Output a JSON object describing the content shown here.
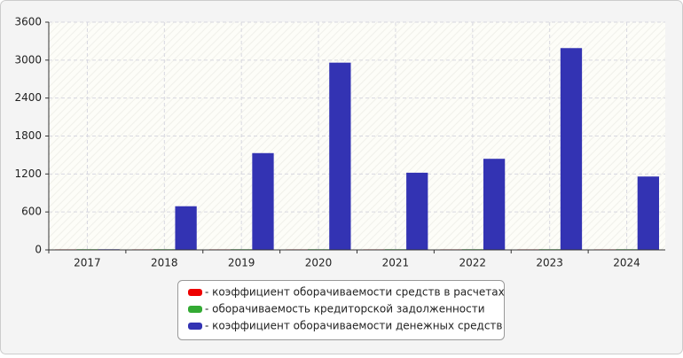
{
  "chart_data": {
    "type": "bar",
    "categories": [
      "2017",
      "2018",
      "2019",
      "2020",
      "2021",
      "2022",
      "2023",
      "2024"
    ],
    "series": [
      {
        "name": "- коэффициент оборачиваемости средств в расчетах",
        "color": "#ee0000",
        "values": [
          8,
          8,
          8,
          8,
          8,
          8,
          8,
          8
        ]
      },
      {
        "name": "- оборачиваемость кредиторской задолженности",
        "color": "#33aa33",
        "values": [
          10,
          10,
          10,
          10,
          10,
          10,
          10,
          10
        ]
      },
      {
        "name": "- коэффициент оборачиваемости денежных средств",
        "color": "#3333b3",
        "values": [
          10,
          690,
          1530,
          2960,
          1220,
          1440,
          3190,
          1160
        ]
      }
    ],
    "ylim": [
      0,
      3600
    ],
    "yticks": [
      0,
      600,
      1200,
      1800,
      2400,
      3000,
      3600
    ],
    "grid": true
  }
}
